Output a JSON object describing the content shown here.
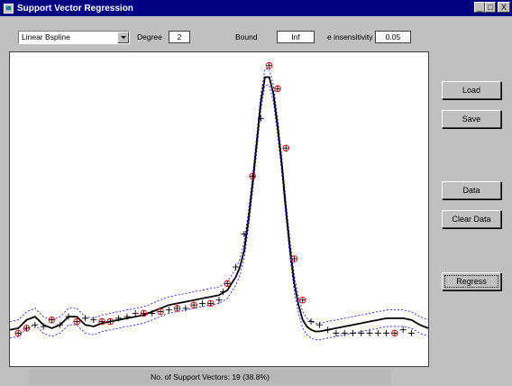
{
  "window": {
    "title": "Support Vector Regression",
    "buttons": [
      "_",
      "□",
      "X"
    ]
  },
  "controls": {
    "kernel": "Linear Bspline",
    "degree_label": "Degree",
    "degree_value": "2",
    "bound_label": "Bound",
    "bound_value": "Inf",
    "eps_label": "e insensitivity",
    "eps_value": "0.05"
  },
  "buttons": {
    "load": "Load",
    "save": "Save",
    "data": "Data",
    "clear": "Clear Data",
    "regress": "Regress"
  },
  "status": "No. of Support Vectors: 19 (38.8%)",
  "chart_data": {
    "type": "scatter",
    "xlim": [
      0,
      1
    ],
    "ylim": [
      -0.2,
      1.7
    ],
    "epsilon": 0.05,
    "regression_x": [
      0,
      0.02,
      0.04,
      0.06,
      0.08,
      0.1,
      0.12,
      0.14,
      0.16,
      0.18,
      0.2,
      0.22,
      0.24,
      0.26,
      0.28,
      0.3,
      0.32,
      0.34,
      0.36,
      0.38,
      0.4,
      0.42,
      0.44,
      0.46,
      0.48,
      0.5,
      0.52,
      0.53,
      0.54,
      0.55,
      0.56,
      0.57,
      0.58,
      0.59,
      0.6,
      0.61,
      0.62,
      0.63,
      0.64,
      0.65,
      0.66,
      0.67,
      0.68,
      0.69,
      0.7,
      0.71,
      0.72,
      0.73,
      0.74,
      0.76,
      0.78,
      0.8,
      0.82,
      0.84,
      0.86,
      0.88,
      0.9,
      0.92,
      0.94,
      0.96,
      0.98,
      1.0
    ],
    "regression_y": [
      0.02,
      0.03,
      0.08,
      0.1,
      0.05,
      0.03,
      0.05,
      0.1,
      0.1,
      0.05,
      0.04,
      0.06,
      0.07,
      0.08,
      0.09,
      0.1,
      0.11,
      0.13,
      0.15,
      0.17,
      0.18,
      0.19,
      0.2,
      0.21,
      0.22,
      0.23,
      0.26,
      0.3,
      0.34,
      0.4,
      0.5,
      0.68,
      0.9,
      1.15,
      1.4,
      1.55,
      1.55,
      1.45,
      1.25,
      1.02,
      0.75,
      0.5,
      0.3,
      0.17,
      0.08,
      0.04,
      0.02,
      0.01,
      0.01,
      0.02,
      0.03,
      0.04,
      0.05,
      0.06,
      0.07,
      0.08,
      0.09,
      0.09,
      0.09,
      0.08,
      0.05,
      0.03
    ],
    "points": [
      [
        0.02,
        0.0
      ],
      [
        0.04,
        0.03
      ],
      [
        0.06,
        0.05
      ],
      [
        0.08,
        0.04
      ],
      [
        0.1,
        0.08
      ],
      [
        0.12,
        0.05
      ],
      [
        0.14,
        0.1
      ],
      [
        0.16,
        0.07
      ],
      [
        0.18,
        0.09
      ],
      [
        0.2,
        0.08
      ],
      [
        0.22,
        0.07
      ],
      [
        0.24,
        0.07
      ],
      [
        0.26,
        0.09
      ],
      [
        0.28,
        0.1
      ],
      [
        0.3,
        0.12
      ],
      [
        0.32,
        0.12
      ],
      [
        0.34,
        0.12
      ],
      [
        0.36,
        0.13
      ],
      [
        0.38,
        0.14
      ],
      [
        0.4,
        0.15
      ],
      [
        0.42,
        0.15
      ],
      [
        0.44,
        0.17
      ],
      [
        0.46,
        0.18
      ],
      [
        0.48,
        0.18
      ],
      [
        0.5,
        0.2
      ],
      [
        0.51,
        0.25
      ],
      [
        0.52,
        0.3
      ],
      [
        0.54,
        0.4
      ],
      [
        0.56,
        0.6
      ],
      [
        0.58,
        0.95
      ],
      [
        0.6,
        1.3
      ],
      [
        0.62,
        1.62
      ],
      [
        0.64,
        1.48
      ],
      [
        0.66,
        1.12
      ],
      [
        0.68,
        0.45
      ],
      [
        0.7,
        0.2
      ],
      [
        0.72,
        0.07
      ],
      [
        0.74,
        0.05
      ],
      [
        0.76,
        0.02
      ],
      [
        0.78,
        0.0
      ],
      [
        0.8,
        0.0
      ],
      [
        0.82,
        0.0
      ],
      [
        0.84,
        0.0
      ],
      [
        0.86,
        0.0
      ],
      [
        0.88,
        0.0
      ],
      [
        0.9,
        0.0
      ],
      [
        0.92,
        0.0
      ],
      [
        0.94,
        0.02
      ],
      [
        0.96,
        0.0
      ]
    ],
    "support_vectors": [
      0,
      1,
      4,
      7,
      10,
      11,
      15,
      17,
      19,
      21,
      23,
      26,
      29,
      31,
      32,
      33,
      34,
      35,
      46
    ]
  }
}
